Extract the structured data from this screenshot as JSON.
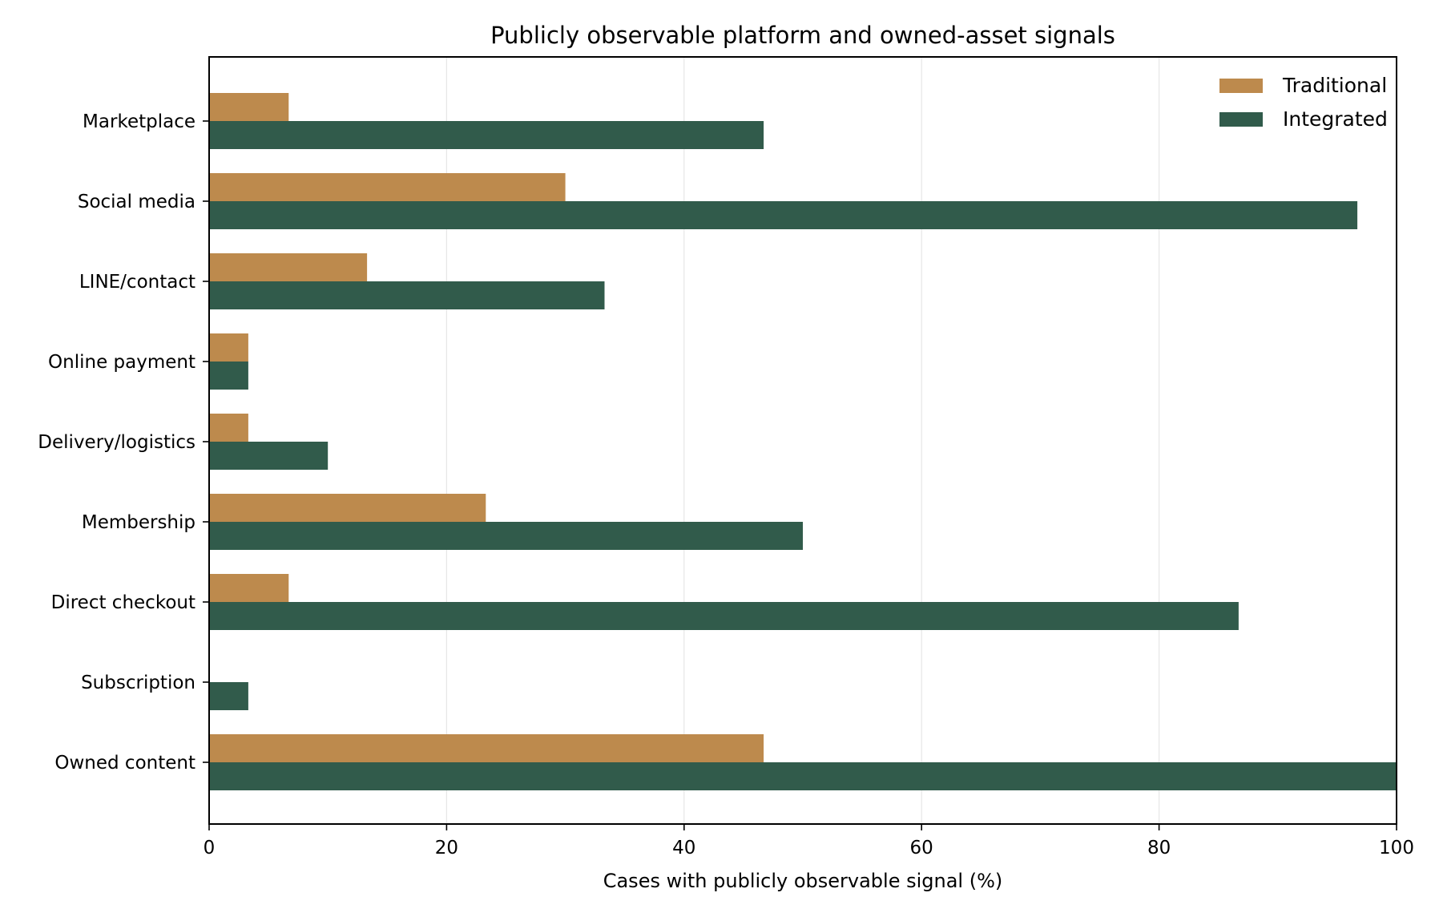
{
  "chart_data": {
    "type": "bar",
    "orientation": "horizontal",
    "title": "Publicly observable platform and owned-asset signals",
    "xlabel": "Cases with publicly observable signal (%)",
    "ylabel": "",
    "xlim": [
      0,
      100
    ],
    "xticks": [
      0,
      20,
      40,
      60,
      80,
      100
    ],
    "grid": "vertical",
    "legend_position": "top-right",
    "categories": [
      "Marketplace",
      "Social media",
      "LINE/contact",
      "Online payment",
      "Delivery/logistics",
      "Membership",
      "Direct checkout",
      "Subscription",
      "Owned content"
    ],
    "series": [
      {
        "name": "Traditional",
        "color": "#bd8a4d",
        "values": [
          6.7,
          30.0,
          13.3,
          3.3,
          3.3,
          23.3,
          6.7,
          0.0,
          46.7
        ]
      },
      {
        "name": "Integrated",
        "color": "#315b4b",
        "values": [
          46.7,
          96.7,
          33.3,
          3.3,
          10.0,
          50.0,
          86.7,
          3.3,
          100.0
        ]
      }
    ]
  }
}
